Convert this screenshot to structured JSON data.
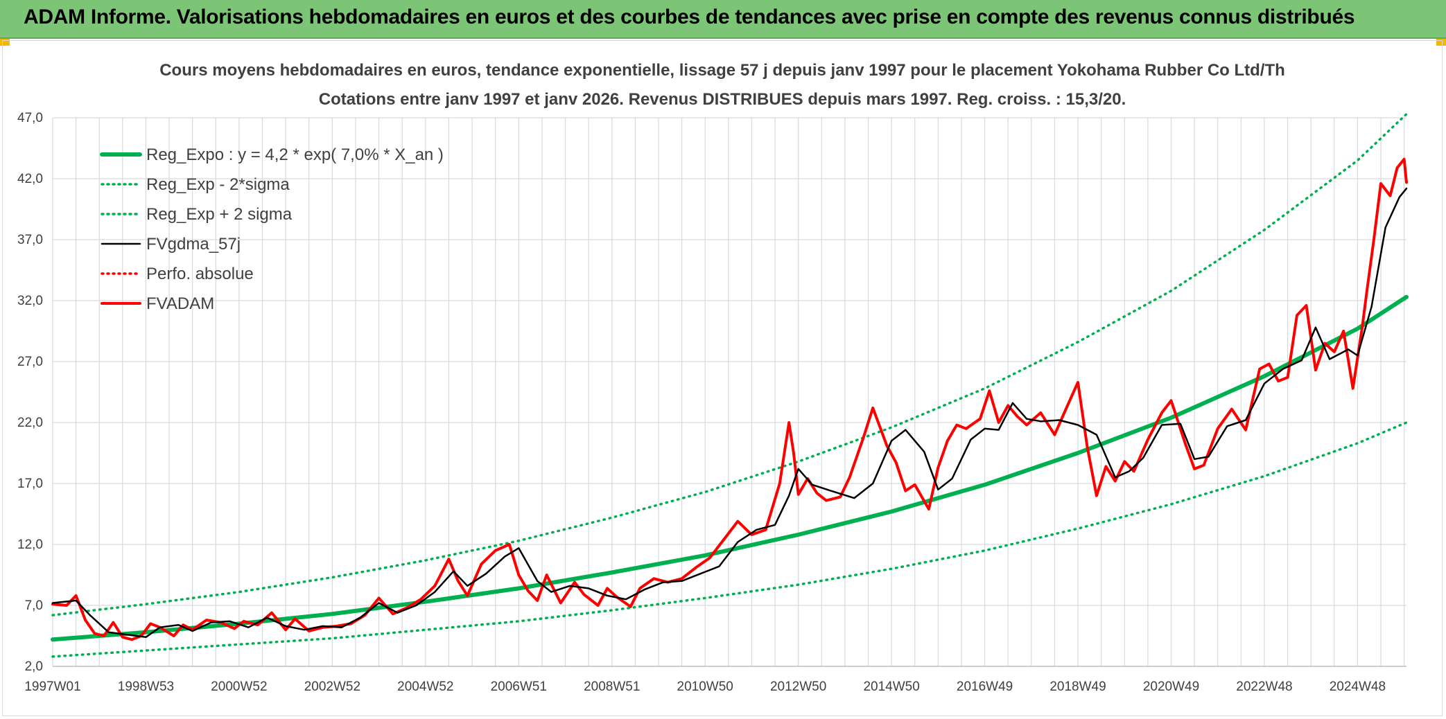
{
  "banner": {
    "title": "ADAM Informe. Valorisations hebdomadaires en euros et des courbes de tendances avec prise en compte des revenus connus distribués",
    "color": "#7cc576"
  },
  "chart_data": {
    "type": "line",
    "title": "Cours moyens hebdomadaires en euros, tendance exponentielle, lissage 57 j depuis janv 1997 pour le placement Yokohama Rubber Co Ltd/Th",
    "subtitle": "Cotations entre janv 1997 et janv 2026. Revenus DISTRIBUES depuis mars 1997. Reg. croiss. : 15,3/20.",
    "xlabel": "",
    "ylabel": "",
    "ylim": [
      2.0,
      47.0
    ],
    "xlim": [
      1997.0,
      2026.05
    ],
    "y_ticks": [
      "2,0",
      "7,0",
      "12,0",
      "17,0",
      "22,0",
      "27,0",
      "32,0",
      "37,0",
      "42,0",
      "47,0"
    ],
    "x_ticks": [
      "1997W01",
      "1998W53",
      "2000W52",
      "2002W52",
      "2004W52",
      "2006W51",
      "2008W51",
      "2010W50",
      "2012W50",
      "2014W50",
      "2016W49",
      "2018W49",
      "2020W49",
      "2022W48",
      "2024W48"
    ],
    "grid": true,
    "legend_position": "top-left",
    "series": [
      {
        "name": "Reg_Expo : y = 4,2 * exp( 7,0% *  X_an )",
        "color": "#00b050",
        "style": "solid-thick",
        "x": [
          1997.0,
          1999.0,
          2001.0,
          2003.0,
          2005.0,
          2007.0,
          2009.0,
          2011.0,
          2013.0,
          2015.0,
          2017.0,
          2019.0,
          2021.0,
          2023.0,
          2025.0,
          2026.05
        ],
        "values": [
          4.2,
          4.8,
          5.5,
          6.3,
          7.3,
          8.4,
          9.7,
          11.1,
          12.8,
          14.7,
          16.9,
          19.5,
          22.4,
          25.8,
          29.7,
          32.3
        ]
      },
      {
        "name": "Reg_Exp - 2*sigma",
        "color": "#00b050",
        "style": "dotted",
        "x": [
          1997.0,
          1999.0,
          2001.0,
          2003.0,
          2005.0,
          2007.0,
          2009.0,
          2011.0,
          2013.0,
          2015.0,
          2017.0,
          2019.0,
          2021.0,
          2023.0,
          2025.0,
          2026.05
        ],
        "values": [
          2.8,
          3.3,
          3.8,
          4.3,
          5.0,
          5.7,
          6.6,
          7.6,
          8.7,
          10.0,
          11.5,
          13.3,
          15.3,
          17.6,
          20.3,
          22.0
        ]
      },
      {
        "name": "Reg_Exp + 2 sigma",
        "color": "#00b050",
        "style": "dotted",
        "x": [
          1997.0,
          1999.0,
          2001.0,
          2003.0,
          2005.0,
          2007.0,
          2009.0,
          2011.0,
          2013.0,
          2015.0,
          2017.0,
          2019.0,
          2021.0,
          2023.0,
          2025.0,
          2026.05
        ],
        "values": [
          6.2,
          7.1,
          8.1,
          9.3,
          10.7,
          12.3,
          14.2,
          16.3,
          18.8,
          21.6,
          24.8,
          28.6,
          32.8,
          37.8,
          43.5,
          47.3
        ]
      },
      {
        "name": "FVgdma_57j",
        "color": "#000000",
        "style": "solid",
        "x": [
          1997.0,
          1997.5,
          1997.8,
          1998.2,
          1998.6,
          1999.0,
          1999.3,
          1999.7,
          2000.0,
          2000.4,
          2000.8,
          2001.2,
          2001.6,
          2002.0,
          2002.4,
          2002.8,
          2003.2,
          2003.6,
          2004.0,
          2004.4,
          2004.8,
          2005.2,
          2005.6,
          2005.9,
          2006.3,
          2006.7,
          2007.0,
          2007.4,
          2007.7,
          2008.1,
          2008.5,
          2008.9,
          2009.3,
          2009.7,
          2010.1,
          2010.5,
          2010.9,
          2011.3,
          2011.7,
          2012.1,
          2012.5,
          2012.8,
          2013.0,
          2013.3,
          2013.7,
          2014.2,
          2014.6,
          2015.0,
          2015.3,
          2015.7,
          2016.0,
          2016.3,
          2016.7,
          2017.0,
          2017.3,
          2017.6,
          2017.9,
          2018.2,
          2018.6,
          2019.0,
          2019.4,
          2019.8,
          2020.1,
          2020.4,
          2020.8,
          2021.2,
          2021.5,
          2021.8,
          2022.2,
          2022.6,
          2023.0,
          2023.4,
          2023.8,
          2024.1,
          2024.4,
          2024.8,
          2025.0,
          2025.3,
          2025.6,
          2025.9,
          2026.05
        ],
        "values": [
          7.2,
          7.4,
          6.2,
          4.8,
          4.6,
          4.4,
          5.2,
          5.4,
          4.9,
          5.6,
          5.7,
          5.2,
          6.0,
          5.3,
          5.0,
          5.3,
          5.2,
          6.0,
          7.2,
          6.4,
          7.0,
          8.1,
          9.8,
          8.6,
          9.6,
          11.0,
          11.7,
          9.0,
          8.1,
          8.6,
          8.4,
          7.8,
          7.5,
          8.3,
          8.9,
          9.0,
          9.6,
          10.2,
          12.2,
          13.2,
          13.6,
          16.0,
          18.2,
          16.9,
          16.4,
          15.8,
          17.0,
          20.5,
          21.4,
          19.6,
          16.5,
          17.4,
          20.6,
          21.5,
          21.4,
          23.6,
          22.3,
          22.1,
          22.2,
          21.8,
          21.0,
          17.5,
          18.0,
          19.1,
          21.8,
          21.9,
          19.0,
          19.2,
          21.7,
          22.2,
          25.2,
          26.4,
          27.1,
          29.8,
          27.2,
          28.0,
          27.5,
          31.5,
          38.0,
          40.5,
          41.2
        ]
      },
      {
        "name": "Perfo. absolue",
        "color": "#ff0000",
        "style": "dotted",
        "x": [],
        "values": []
      },
      {
        "name": "FVADAM",
        "color": "#ff0000",
        "style": "solid-thick",
        "x": [
          1997.0,
          1997.3,
          1997.5,
          1997.7,
          1997.9,
          1998.1,
          1998.3,
          1998.5,
          1998.7,
          1998.9,
          1999.1,
          1999.3,
          1999.6,
          1999.8,
          2000.0,
          2000.3,
          2000.6,
          2000.9,
          2001.1,
          2001.4,
          2001.7,
          2002.0,
          2002.2,
          2002.5,
          2002.8,
          2003.1,
          2003.4,
          2003.7,
          2004.0,
          2004.3,
          2004.6,
          2004.9,
          2005.2,
          2005.5,
          2005.7,
          2005.9,
          2006.2,
          2006.5,
          2006.8,
          2007.0,
          2007.2,
          2007.4,
          2007.6,
          2007.9,
          2008.2,
          2008.4,
          2008.7,
          2008.9,
          2009.1,
          2009.4,
          2009.6,
          2009.9,
          2010.2,
          2010.5,
          2010.8,
          2011.1,
          2011.4,
          2011.7,
          2012.0,
          2012.3,
          2012.6,
          2012.8,
          2012.9,
          2013.0,
          2013.2,
          2013.4,
          2013.6,
          2013.9,
          2014.1,
          2014.4,
          2014.6,
          2014.9,
          2015.1,
          2015.3,
          2015.5,
          2015.8,
          2016.0,
          2016.2,
          2016.4,
          2016.6,
          2016.9,
          2017.1,
          2017.3,
          2017.5,
          2017.7,
          2017.9,
          2018.2,
          2018.5,
          2018.8,
          2019.0,
          2019.2,
          2019.4,
          2019.6,
          2019.8,
          2020.0,
          2020.2,
          2020.5,
          2020.8,
          2021.0,
          2021.3,
          2021.5,
          2021.7,
          2022.0,
          2022.3,
          2022.6,
          2022.9,
          2023.1,
          2023.3,
          2023.5,
          2023.7,
          2023.9,
          2024.1,
          2024.3,
          2024.5,
          2024.7,
          2024.9,
          2025.1,
          2025.2,
          2025.35,
          2025.5,
          2025.7,
          2025.85,
          2026.0,
          2026.05
        ],
        "values": [
          7.1,
          7.0,
          7.8,
          5.8,
          4.7,
          4.5,
          5.6,
          4.4,
          4.2,
          4.5,
          5.5,
          5.2,
          4.5,
          5.4,
          5.0,
          5.8,
          5.6,
          5.1,
          5.7,
          5.4,
          6.4,
          5.0,
          5.9,
          4.9,
          5.2,
          5.3,
          5.5,
          6.2,
          7.6,
          6.3,
          6.8,
          7.5,
          8.6,
          10.8,
          9.0,
          7.8,
          10.4,
          11.5,
          12.0,
          9.5,
          8.2,
          7.4,
          9.5,
          7.2,
          8.9,
          7.9,
          7.0,
          8.4,
          7.7,
          6.9,
          8.4,
          9.2,
          8.9,
          9.2,
          10.1,
          10.9,
          12.4,
          13.9,
          12.8,
          13.2,
          17.0,
          22.0,
          19.5,
          16.1,
          17.4,
          16.2,
          15.6,
          15.9,
          17.5,
          20.8,
          23.2,
          20.1,
          18.7,
          16.4,
          16.9,
          14.9,
          18.3,
          20.5,
          21.8,
          21.5,
          22.3,
          24.6,
          22.0,
          23.4,
          22.5,
          21.8,
          22.8,
          21.0,
          23.6,
          25.3,
          20.0,
          16.0,
          18.4,
          17.2,
          18.8,
          18.0,
          20.6,
          22.8,
          23.8,
          20.3,
          18.2,
          18.5,
          21.5,
          23.1,
          21.4,
          26.4,
          26.8,
          25.4,
          25.7,
          30.8,
          31.6,
          26.3,
          28.5,
          27.8,
          29.5,
          24.8,
          29.8,
          32.8,
          37.0,
          41.6,
          40.6,
          42.9,
          43.6,
          41.7
        ]
      }
    ]
  }
}
